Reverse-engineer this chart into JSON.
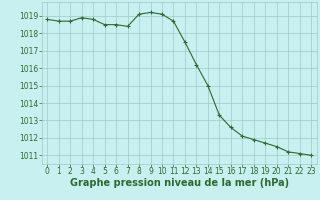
{
  "x": [
    0,
    1,
    2,
    3,
    4,
    5,
    6,
    7,
    8,
    9,
    10,
    11,
    12,
    13,
    14,
    15,
    16,
    17,
    18,
    19,
    20,
    21,
    22,
    23
  ],
  "y": [
    1018.8,
    1018.7,
    1018.7,
    1018.9,
    1018.8,
    1018.5,
    1018.5,
    1018.4,
    1019.1,
    1019.2,
    1019.1,
    1018.7,
    1017.5,
    1016.2,
    1015.0,
    1013.3,
    1012.6,
    1012.1,
    1011.9,
    1011.7,
    1011.5,
    1011.2,
    1011.1,
    1011.0
  ],
  "line_color": "#2d6a2d",
  "marker": "+",
  "marker_color": "#2d6a2d",
  "bg_color": "#c8f0f0",
  "grid_color": "#a0c8c8",
  "xlabel": "Graphe pression niveau de la mer (hPa)",
  "xlabel_color": "#2d6a2d",
  "xlabel_fontsize": 7,
  "tick_color": "#2d6a2d",
  "tick_fontsize": 5.5,
  "ylim": [
    1010.5,
    1019.8
  ],
  "xlim": [
    -0.5,
    23.5
  ],
  "yticks": [
    1011,
    1012,
    1013,
    1014,
    1015,
    1016,
    1017,
    1018,
    1019
  ],
  "xticks": [
    0,
    1,
    2,
    3,
    4,
    5,
    6,
    7,
    8,
    9,
    10,
    11,
    12,
    13,
    14,
    15,
    16,
    17,
    18,
    19,
    20,
    21,
    22,
    23
  ]
}
